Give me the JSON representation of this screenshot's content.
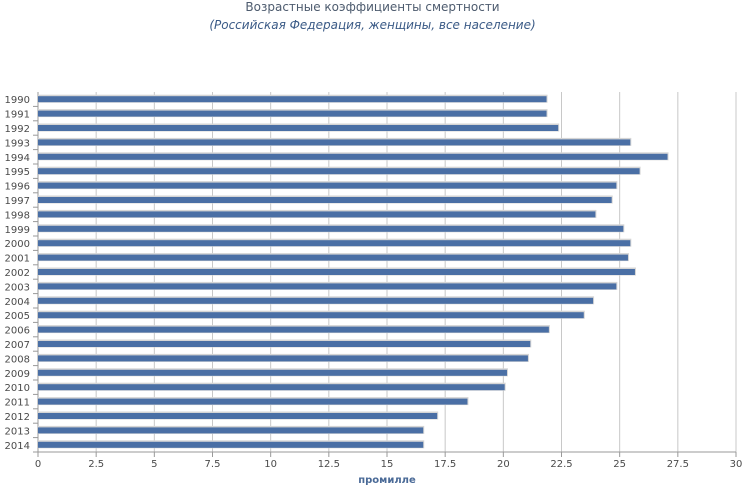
{
  "chart_data": {
    "type": "bar",
    "orientation": "horizontal",
    "title": "Возрастные коэффициенты смертности",
    "subtitle": "(Российская Федерация, женщины, все население)",
    "xlabel": "промилле",
    "ylabel": "",
    "xlim": [
      0,
      30
    ],
    "xticks": [
      "0",
      "2.5",
      "5",
      "7.5",
      "10",
      "12.5",
      "15",
      "17.5",
      "20",
      "22.5",
      "25",
      "27.5",
      "30"
    ],
    "grid": true,
    "bar_color": "#4a6fa5",
    "categories": [
      "1990",
      "1991",
      "1992",
      "1993",
      "1994",
      "1995",
      "1996",
      "1997",
      "1998",
      "1999",
      "2000",
      "2001",
      "2002",
      "2003",
      "2004",
      "2005",
      "2006",
      "2007",
      "2008",
      "2009",
      "2010",
      "2011",
      "2012",
      "2013",
      "2014"
    ],
    "values": [
      21.9,
      21.9,
      22.4,
      25.5,
      27.1,
      25.9,
      24.9,
      24.7,
      24.0,
      25.2,
      25.5,
      25.4,
      25.7,
      24.9,
      23.9,
      23.5,
      22.0,
      21.2,
      21.1,
      20.2,
      20.1,
      18.5,
      17.2,
      16.6,
      16.6
    ]
  }
}
